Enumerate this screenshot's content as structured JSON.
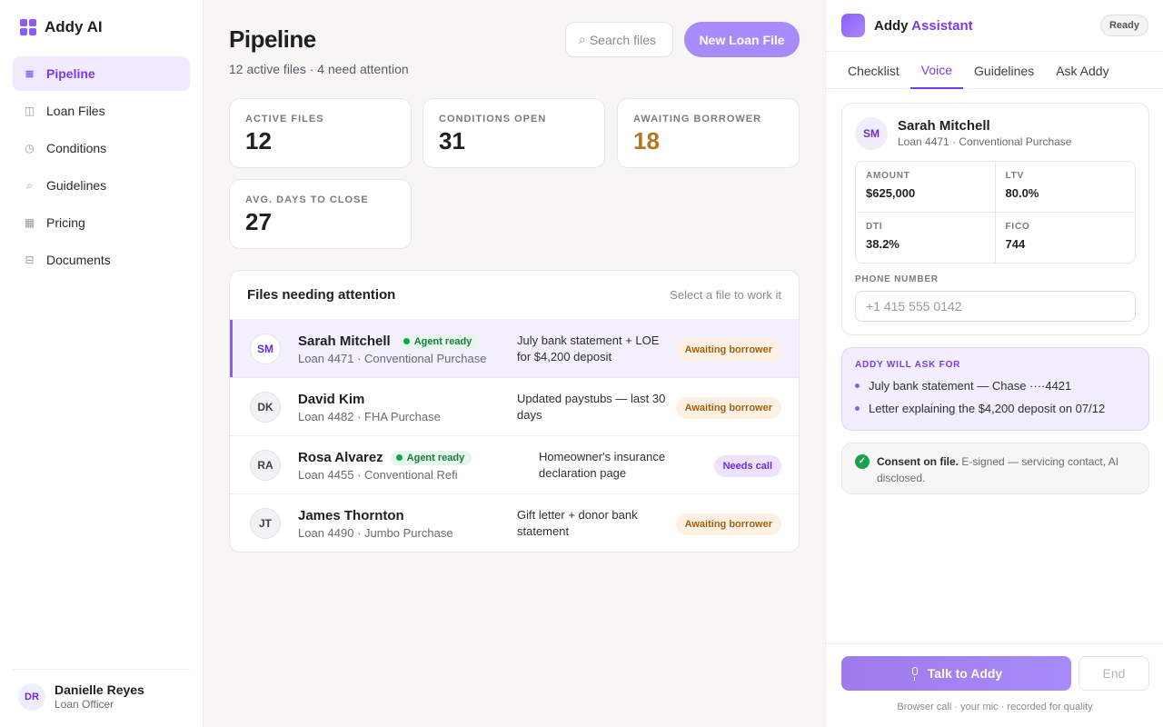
{
  "sidebar": {
    "brand": "Addy AI",
    "items": [
      {
        "label": "Pipeline",
        "icon": "list-icon",
        "glyph": "≣"
      },
      {
        "label": "Loan Files",
        "icon": "folder-icon",
        "glyph": "◫"
      },
      {
        "label": "Conditions",
        "icon": "clock-icon",
        "glyph": "◷"
      },
      {
        "label": "Guidelines",
        "icon": "search-icon",
        "glyph": "⌕"
      },
      {
        "label": "Pricing",
        "icon": "grid-icon",
        "glyph": "▦"
      },
      {
        "label": "Documents",
        "icon": "document-icon",
        "glyph": "⊟"
      }
    ],
    "user": {
      "initials": "DR",
      "name": "Danielle Reyes",
      "role": "Loan Officer"
    }
  },
  "header": {
    "title": "Pipeline",
    "subtitle": "12 active files · 4 need attention",
    "search_glyph": "⌕",
    "search_placeholder": "Search files",
    "new_button": "New Loan File"
  },
  "stats": [
    {
      "label": "ACTIVE FILES",
      "value": "12"
    },
    {
      "label": "CONDITIONS OPEN",
      "value": "31"
    },
    {
      "label": "AWAITING BORROWER",
      "value": "18"
    },
    {
      "label": "AVG. DAYS TO CLOSE",
      "value": "27"
    }
  ],
  "files": {
    "title": "Files needing attention",
    "hint": "Select a file to work it",
    "agent_label": "Agent ready",
    "rows": [
      {
        "initials": "SM",
        "name": "Sarah Mitchell",
        "loan": "Loan 4471 · Conventional Purchase",
        "need": "July bank statement + LOE for $4,200 deposit",
        "status": "Awaiting borrower"
      },
      {
        "initials": "DK",
        "name": "David Kim",
        "loan": "Loan 4482 · FHA Purchase",
        "need": "Updated paystubs — last 30 days",
        "status": "Awaiting borrower"
      },
      {
        "initials": "RA",
        "name": "Rosa Alvarez",
        "loan": "Loan 4455 · Conventional Refi",
        "need": "Homeowner's insurance declaration page",
        "status": "Needs call"
      },
      {
        "initials": "JT",
        "name": "James Thornton",
        "loan": "Loan 4490 · Jumbo Purchase",
        "need": "Gift letter + donor bank statement",
        "status": "Awaiting borrower"
      }
    ]
  },
  "assistant": {
    "title_a": "Addy",
    "title_b": "Assistant",
    "status": "Ready",
    "tabs": [
      "Checklist",
      "Voice",
      "Guidelines",
      "Ask Addy"
    ],
    "borrower": {
      "initials": "SM",
      "name": "Sarah Mitchell",
      "loan": "Loan 4471 · Conventional Purchase",
      "metrics": [
        {
          "label": "AMOUNT",
          "value": "$625,000"
        },
        {
          "label": "LTV",
          "value": "80.0%"
        },
        {
          "label": "DTI",
          "value": "38.2%"
        },
        {
          "label": "FICO",
          "value": "744"
        }
      ],
      "phone_label": "PHONE NUMBER",
      "phone_placeholder": "+1 415 555 0142"
    },
    "ask": {
      "title": "ADDY WILL ASK FOR",
      "items": [
        "July bank statement — Chase ····4421",
        "Letter explaining the $4,200 deposit on 07/12"
      ]
    },
    "consent": {
      "strong": "Consent on file.",
      "text": " E-signed — servicing contact, AI disclosed."
    },
    "talk_button": "Talk to Addy",
    "end_button": "End",
    "note": "Browser call · your mic · recorded for quality"
  },
  "colors": {
    "accent": "#8b5cf6",
    "warn": "#b7741a",
    "success": "#16a34a"
  }
}
